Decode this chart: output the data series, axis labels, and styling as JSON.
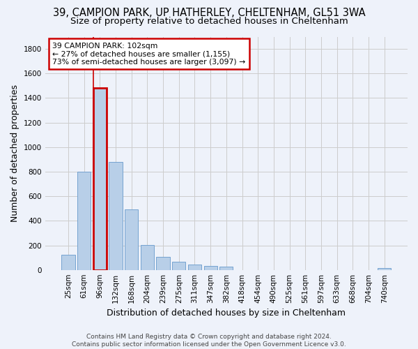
{
  "title_line1": "39, CAMPION PARK, UP HATHERLEY, CHELTENHAM, GL51 3WA",
  "title_line2": "Size of property relative to detached houses in Cheltenham",
  "xlabel": "Distribution of detached houses by size in Cheltenham",
  "ylabel": "Number of detached properties",
  "footer": "Contains HM Land Registry data © Crown copyright and database right 2024.\nContains public sector information licensed under the Open Government Licence v3.0.",
  "bar_labels": [
    "25sqm",
    "61sqm",
    "96sqm",
    "132sqm",
    "168sqm",
    "204sqm",
    "239sqm",
    "275sqm",
    "311sqm",
    "347sqm",
    "382sqm",
    "418sqm",
    "454sqm",
    "490sqm",
    "525sqm",
    "561sqm",
    "597sqm",
    "633sqm",
    "668sqm",
    "704sqm",
    "740sqm"
  ],
  "bar_values": [
    125,
    800,
    1480,
    880,
    490,
    205,
    105,
    65,
    42,
    35,
    27,
    0,
    0,
    0,
    0,
    0,
    0,
    0,
    0,
    0,
    18
  ],
  "bar_color": "#b8cfe8",
  "bar_edge_color": "#6699cc",
  "highlight_bar_index": 2,
  "highlight_edge_color": "#cc0000",
  "annotation_text": "39 CAMPION PARK: 102sqm\n← 27% of detached houses are smaller (1,155)\n73% of semi-detached houses are larger (3,097) →",
  "annotation_box_color": "#ffffff",
  "annotation_box_edge": "#cc0000",
  "ylim": [
    0,
    1900
  ],
  "yticks": [
    0,
    200,
    400,
    600,
    800,
    1000,
    1200,
    1400,
    1600,
    1800
  ],
  "grid_color": "#cccccc",
  "background_color": "#eef2fa",
  "title_fontsize": 10.5,
  "subtitle_fontsize": 9.5,
  "axis_label_fontsize": 9,
  "tick_fontsize": 7.5,
  "footer_fontsize": 6.5
}
